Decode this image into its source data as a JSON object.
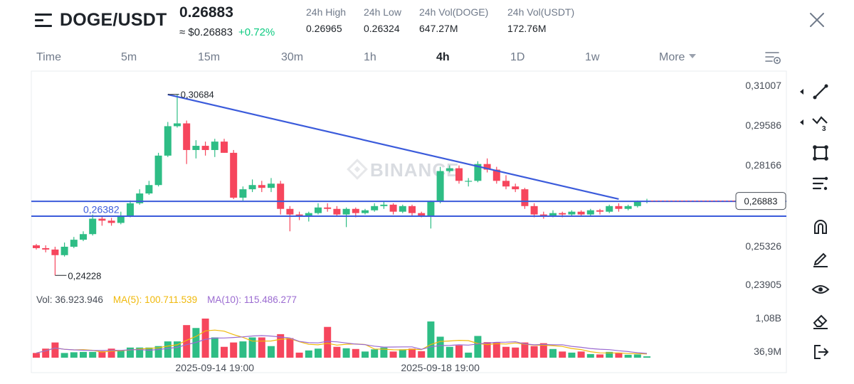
{
  "header": {
    "pair": "DOGE/USDT",
    "price": "0.26883",
    "price_usd": "≈ $0.26883",
    "change": "+0.72%",
    "stats": [
      {
        "label": "24h High",
        "value": "0.26965"
      },
      {
        "label": "24h Low",
        "value": "0.26324"
      },
      {
        "label": "24h Vol(DOGE)",
        "value": "647.27M"
      },
      {
        "label": "24h Vol(USDT)",
        "value": "172.76M"
      }
    ]
  },
  "tabs": [
    {
      "label": "Time",
      "active": false
    },
    {
      "label": "5m",
      "active": false
    },
    {
      "label": "15m",
      "active": false
    },
    {
      "label": "30m",
      "active": false
    },
    {
      "label": "1h",
      "active": false
    },
    {
      "label": "4h",
      "active": true
    },
    {
      "label": "1D",
      "active": false
    },
    {
      "label": "1w",
      "active": false
    },
    {
      "label": "More",
      "active": false
    }
  ],
  "colors": {
    "up": "#2ebd85",
    "down": "#f6465d",
    "trendline": "#3b5bdb",
    "ma5": "#f0b90b",
    "ma10": "#9b6bd1",
    "axis_text": "#474d57"
  },
  "toolbar": [
    "trendline-tool-icon",
    "multi-line-tool-icon",
    "rectangle-tool-icon",
    "fib-tool-icon",
    "magnet-icon",
    "pencil-icon",
    "eye-icon",
    "eraser-icon",
    "exit-icon"
  ],
  "chart_data": {
    "type": "candlestick",
    "interval": "4h",
    "watermark": "BINANCE",
    "price_axis": {
      "ticks": [
        "0,31007",
        "0,29586",
        "0,28166",
        "0,25326",
        "0,23905"
      ],
      "tick_values": [
        0.31007,
        0.29586,
        0.28166,
        0.25326,
        0.23905
      ],
      "ylim": [
        0.235,
        0.315
      ],
      "current_label": "0,26883",
      "current_value": 0.26883
    },
    "time_axis": {
      "labels": [
        "2025-09-14 19:00",
        "2025-09-18 19:00"
      ],
      "label_index": [
        19,
        43
      ]
    },
    "annotations": {
      "high": "0,30684",
      "high_value": 0.30684,
      "high_index": 14,
      "low": "0,24228",
      "low_value": 0.24228,
      "low_index": 2,
      "support": "0,26382",
      "support_value": 0.26382
    },
    "lines": [
      {
        "type": "horizontal",
        "value": 0.2687
      },
      {
        "type": "horizontal",
        "value": 0.2634
      },
      {
        "type": "trend",
        "from": [
          14,
          0.3068
        ],
        "to": [
          62,
          0.2695
        ]
      }
    ],
    "candles": [
      [
        0.253,
        0.2535,
        0.2515,
        0.252
      ],
      [
        0.252,
        0.253,
        0.2505,
        0.2515
      ],
      [
        0.2515,
        0.2525,
        0.2423,
        0.2495
      ],
      [
        0.2495,
        0.254,
        0.249,
        0.2525
      ],
      [
        0.2525,
        0.256,
        0.252,
        0.255
      ],
      [
        0.255,
        0.258,
        0.2545,
        0.257
      ],
      [
        0.257,
        0.264,
        0.2565,
        0.2625
      ],
      [
        0.2625,
        0.2635,
        0.26,
        0.2618
      ],
      [
        0.2618,
        0.2628,
        0.26,
        0.261
      ],
      [
        0.261,
        0.265,
        0.2605,
        0.2635
      ],
      [
        0.2635,
        0.269,
        0.263,
        0.268
      ],
      [
        0.268,
        0.273,
        0.2675,
        0.2715
      ],
      [
        0.2715,
        0.276,
        0.271,
        0.2745
      ],
      [
        0.2745,
        0.286,
        0.274,
        0.285
      ],
      [
        0.285,
        0.297,
        0.2845,
        0.2955
      ],
      [
        0.2955,
        0.3068,
        0.295,
        0.2965
      ],
      [
        0.2965,
        0.2975,
        0.282,
        0.287
      ],
      [
        0.287,
        0.2905,
        0.284,
        0.2885
      ],
      [
        0.2885,
        0.29,
        0.285,
        0.287
      ],
      [
        0.287,
        0.291,
        0.2845,
        0.29
      ],
      [
        0.29,
        0.291,
        0.286,
        0.286
      ],
      [
        0.286,
        0.287,
        0.2695,
        0.27
      ],
      [
        0.27,
        0.274,
        0.269,
        0.273
      ],
      [
        0.273,
        0.2765,
        0.272,
        0.2745
      ],
      [
        0.2745,
        0.276,
        0.272,
        0.2735
      ],
      [
        0.2735,
        0.277,
        0.272,
        0.275
      ],
      [
        0.275,
        0.276,
        0.264,
        0.266
      ],
      [
        0.266,
        0.267,
        0.258,
        0.264
      ],
      [
        0.264,
        0.265,
        0.262,
        0.2635
      ],
      [
        0.2635,
        0.265,
        0.2615,
        0.2645
      ],
      [
        0.2645,
        0.268,
        0.264,
        0.2665
      ],
      [
        0.2665,
        0.268,
        0.265,
        0.266
      ],
      [
        0.266,
        0.267,
        0.2635,
        0.264
      ],
      [
        0.264,
        0.2665,
        0.2595,
        0.266
      ],
      [
        0.266,
        0.2665,
        0.263,
        0.2645
      ],
      [
        0.2645,
        0.266,
        0.264,
        0.2655
      ],
      [
        0.2655,
        0.268,
        0.265,
        0.267
      ],
      [
        0.267,
        0.2685,
        0.266,
        0.2675
      ],
      [
        0.2675,
        0.268,
        0.264,
        0.265
      ],
      [
        0.265,
        0.2675,
        0.2645,
        0.267
      ],
      [
        0.267,
        0.2675,
        0.2635,
        0.2645
      ],
      [
        0.2645,
        0.265,
        0.263,
        0.2635
      ],
      [
        0.2635,
        0.269,
        0.259,
        0.2685
      ],
      [
        0.2685,
        0.281,
        0.268,
        0.2795
      ],
      [
        0.2795,
        0.2815,
        0.279,
        0.2805
      ],
      [
        0.2805,
        0.2815,
        0.275,
        0.276
      ],
      [
        0.276,
        0.277,
        0.274,
        0.276
      ],
      [
        0.276,
        0.283,
        0.2755,
        0.282
      ],
      [
        0.282,
        0.284,
        0.279,
        0.28
      ],
      [
        0.28,
        0.281,
        0.275,
        0.276
      ],
      [
        0.276,
        0.278,
        0.273,
        0.274
      ],
      [
        0.274,
        0.275,
        0.272,
        0.273
      ],
      [
        0.273,
        0.2735,
        0.266,
        0.267
      ],
      [
        0.267,
        0.268,
        0.263,
        0.264
      ],
      [
        0.264,
        0.265,
        0.2625,
        0.2635
      ],
      [
        0.2635,
        0.2655,
        0.263,
        0.2645
      ],
      [
        0.2645,
        0.265,
        0.263,
        0.264
      ],
      [
        0.264,
        0.2655,
        0.2635,
        0.265
      ],
      [
        0.265,
        0.2655,
        0.2635,
        0.264
      ],
      [
        0.264,
        0.266,
        0.2635,
        0.2655
      ],
      [
        0.2655,
        0.266,
        0.264,
        0.265
      ],
      [
        0.265,
        0.2675,
        0.2645,
        0.267
      ],
      [
        0.267,
        0.268,
        0.265,
        0.266
      ],
      [
        0.266,
        0.2675,
        0.2655,
        0.267
      ],
      [
        0.267,
        0.269,
        0.2665,
        0.2685
      ],
      [
        0.2685,
        0.2696,
        0.268,
        0.2688
      ]
    ],
    "volume": {
      "label": "Vol: 36.923.946",
      "ma5_label": "MA(5): 100.711.539",
      "ma10_label": "MA(10): 115.486.277",
      "axis_ticks": [
        "1,08B",
        "36,9M"
      ],
      "tick_values": [
        1080000000,
        36900000
      ],
      "values_m": [
        130,
        250,
        420,
        130,
        150,
        160,
        160,
        180,
        250,
        200,
        280,
        280,
        280,
        320,
        450,
        450,
        900,
        820,
        1080,
        560,
        300,
        420,
        450,
        560,
        560,
        320,
        650,
        540,
        140,
        200,
        250,
        850,
        300,
        260,
        240,
        170,
        230,
        280,
        170,
        230,
        250,
        180,
        1000,
        580,
        300,
        340,
        140,
        600,
        430,
        420,
        300,
        280,
        420,
        320,
        400,
        240,
        170,
        140,
        170,
        100,
        90,
        160,
        140,
        80,
        90,
        37
      ]
    }
  }
}
